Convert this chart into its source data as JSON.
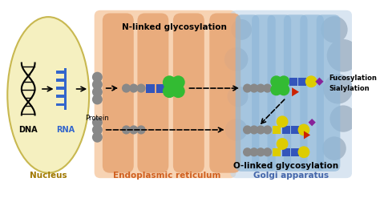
{
  "bg_color": "#ffffff",
  "nucleus_color": "#f5f0c0",
  "nucleus_border": "#c8b850",
  "er_color": "#f5c8a0",
  "golgi_color": "#c5d8ea",
  "nucleus_label": "Nucleus",
  "nucleus_label_color": "#a07800",
  "er_label": "Endoplasmic reticulum",
  "er_label_color": "#d06020",
  "golgi_label": "Golgi apparatus",
  "golgi_label_color": "#4466aa",
  "protein_label": "Protein",
  "n_glyco_label": "N-linked glycosylation",
  "o_glyco_label": "O-linked glycosylation",
  "fucosylation_label": "Fucosylation",
  "sialylation_label": "Sialylation",
  "green": "#33bb33",
  "blue_sq": "#3355bb",
  "yellow": "#ddcc00",
  "purple": "#882299",
  "red_tri": "#cc2200",
  "gray_dot": "#888888",
  "rna_blue": "#3366cc",
  "er_pillar": "#e8a878",
  "golgi_pillar": "#90b8d8",
  "golgi_dot": "#aabbcc"
}
